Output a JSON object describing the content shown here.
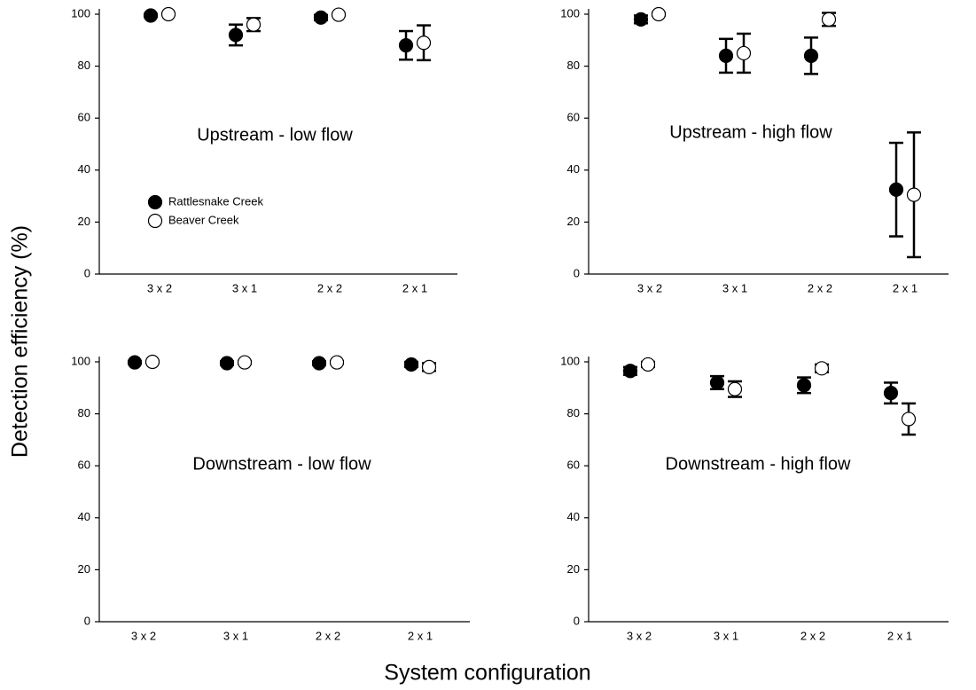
{
  "ylabel": "Detection efficiency (%)",
  "xlabel": "System configuration",
  "chart_data": [
    {
      "type": "scatter",
      "title": "Upstream - low flow",
      "categories": [
        "3 x 2",
        "3 x 1",
        "2 x 2",
        "2 x 1"
      ],
      "ylim": [
        0,
        100
      ],
      "yticks": [
        0,
        20,
        40,
        60,
        80,
        100
      ],
      "legend": "left",
      "series": [
        {
          "name": "Rattlesnake Creek",
          "color": "#000000",
          "values": [
            99.5,
            92,
            98.7,
            88
          ],
          "errors": [
            0.5,
            4,
            1,
            5.5
          ]
        },
        {
          "name": "Beaver Creek",
          "color": "#ffffff",
          "values": [
            100,
            96,
            99.8,
            89
          ],
          "errors": [
            0.3,
            2.5,
            0.3,
            6.7
          ]
        }
      ]
    },
    {
      "type": "scatter",
      "title": "Upstream - high flow",
      "categories": [
        "3 x 2",
        "3 x 1",
        "2 x 2",
        "2 x 1"
      ],
      "ylim": [
        0,
        100
      ],
      "yticks": [
        0,
        20,
        40,
        60,
        80,
        100
      ],
      "series": [
        {
          "color": "#000000",
          "values": [
            98,
            84,
            84,
            32.5
          ],
          "errors": [
            1.5,
            6.5,
            7,
            18
          ]
        },
        {
          "color": "#ffffff",
          "values": [
            100,
            85,
            98,
            30.5
          ],
          "errors": [
            0.5,
            7.5,
            2.5,
            24
          ]
        }
      ]
    },
    {
      "type": "scatter",
      "title": "Downstream - low flow",
      "categories": [
        "3 x 2",
        "3 x 1",
        "2 x 2",
        "2 x 1"
      ],
      "ylim": [
        0,
        100
      ],
      "yticks": [
        0,
        20,
        40,
        60,
        80,
        100
      ],
      "series": [
        {
          "color": "#000000",
          "values": [
            99.8,
            99.5,
            99.5,
            99
          ],
          "errors": [
            0.5,
            0.7,
            0.7,
            1
          ]
        },
        {
          "color": "#ffffff",
          "values": [
            100,
            99.8,
            99.8,
            98
          ],
          "errors": [
            0.3,
            0.5,
            0.5,
            1.5
          ]
        }
      ]
    },
    {
      "type": "scatter",
      "title": "Downstream - high flow",
      "categories": [
        "3 x 2",
        "3 x 1",
        "2 x 2",
        "2 x 1"
      ],
      "ylim": [
        0,
        100
      ],
      "yticks": [
        0,
        20,
        40,
        60,
        80,
        100
      ],
      "series": [
        {
          "color": "#000000",
          "values": [
            96.5,
            92,
            91,
            88
          ],
          "errors": [
            1.5,
            2.5,
            3,
            4
          ]
        },
        {
          "color": "#ffffff",
          "values": [
            99,
            89.5,
            97.5,
            78
          ],
          "errors": [
            1,
            3,
            1.5,
            6
          ]
        }
      ]
    }
  ]
}
